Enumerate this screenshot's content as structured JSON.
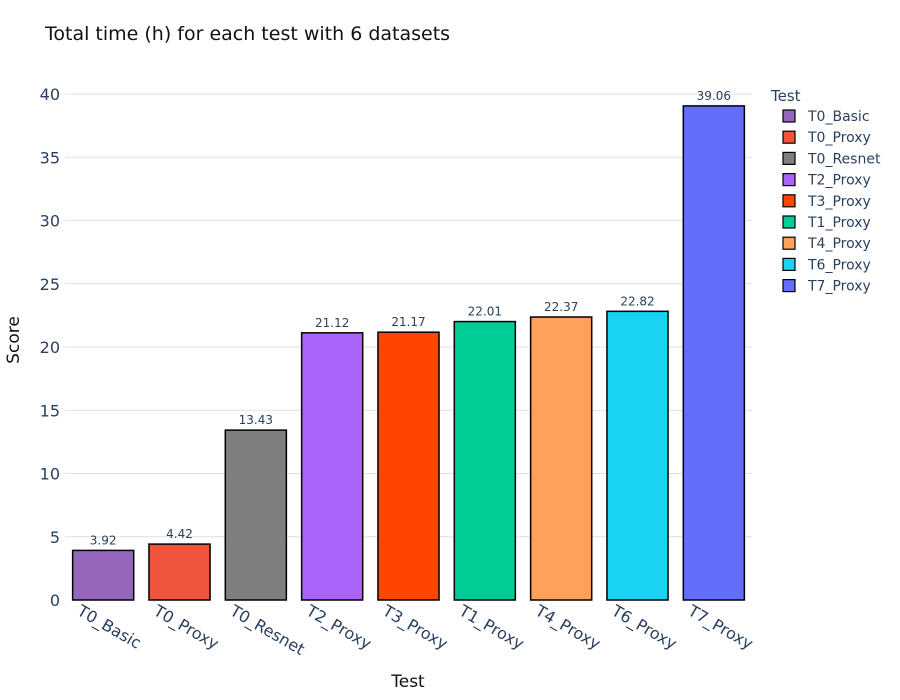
{
  "chart_data": {
    "type": "bar",
    "title": "Total time (h) for each test with 6 datasets",
    "xlabel": "Test",
    "ylabel": "Score",
    "ylim": [
      0,
      40
    ],
    "yticks": [
      0,
      5,
      10,
      15,
      20,
      25,
      30,
      35,
      40
    ],
    "grid": true,
    "legend_title": "Test",
    "legend_position": "right",
    "categories": [
      "T0_Basic",
      "T0_Proxy",
      "T0_Resnet",
      "T2_Proxy",
      "T3_Proxy",
      "T1_Proxy",
      "T4_Proxy",
      "T6_Proxy",
      "T7_Proxy"
    ],
    "values": [
      3.92,
      4.42,
      13.43,
      21.12,
      21.17,
      22.01,
      22.37,
      22.82,
      39.06
    ],
    "value_labels": [
      "3.92",
      "4.42",
      "13.43",
      "21.12",
      "21.17",
      "22.01",
      "22.37",
      "22.82",
      "39.06"
    ],
    "colors": [
      "#9467bd",
      "#ef553b",
      "#7f7f7f",
      "#ab63fa",
      "#ff4500",
      "#00cc96",
      "#ffa15a",
      "#19d3f3",
      "#636efa"
    ]
  }
}
